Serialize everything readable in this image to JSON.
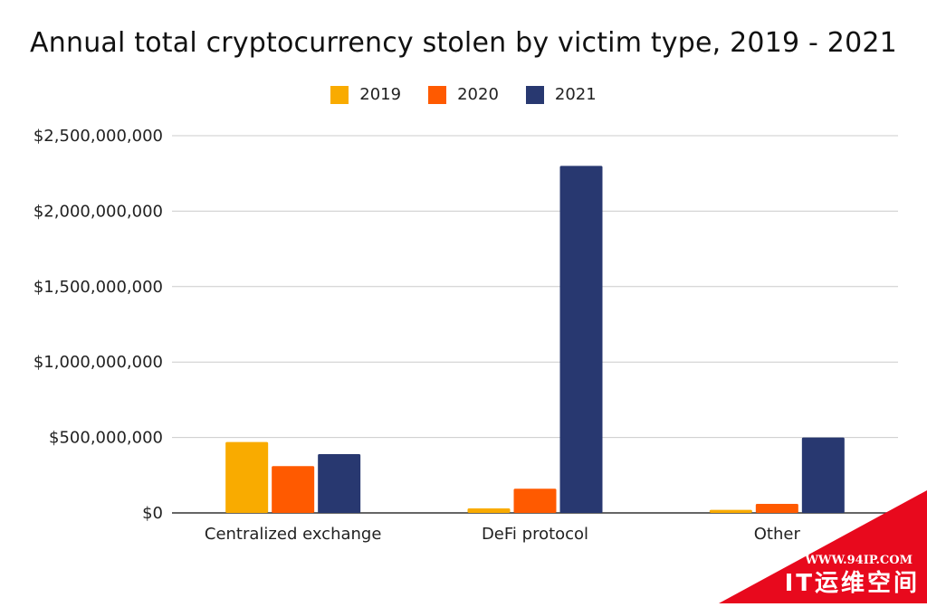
{
  "chart_data": {
    "type": "bar",
    "title": "Annual total cryptocurrency stolen by victim type, 2019 - 2021",
    "categories": [
      "Centralized exchange",
      "DeFi protocol",
      "Other"
    ],
    "series": [
      {
        "name": "2019",
        "color": "#f9ab00",
        "values": [
          470000000,
          30000000,
          20000000
        ]
      },
      {
        "name": "2020",
        "color": "#ff5a00",
        "values": [
          310000000,
          160000000,
          60000000
        ]
      },
      {
        "name": "2021",
        "color": "#283870",
        "values": [
          390000000,
          2300000000,
          500000000
        ]
      }
    ],
    "ylim": [
      0,
      2500000000
    ],
    "yticks": [
      0,
      500000000,
      1000000000,
      1500000000,
      2000000000,
      2500000000
    ],
    "ytick_labels": [
      "$0",
      "$500,000,000",
      "$1,000,000,000",
      "$1,500,000,000",
      "$2,000,000,000",
      "$2,500,000,000"
    ],
    "xlabel": "",
    "ylabel": "",
    "grid": true,
    "legend_position": "top-center"
  },
  "watermark": {
    "url": "WWW.94IP.COM",
    "name": "IT运维空间",
    "color": "#e8091d"
  }
}
